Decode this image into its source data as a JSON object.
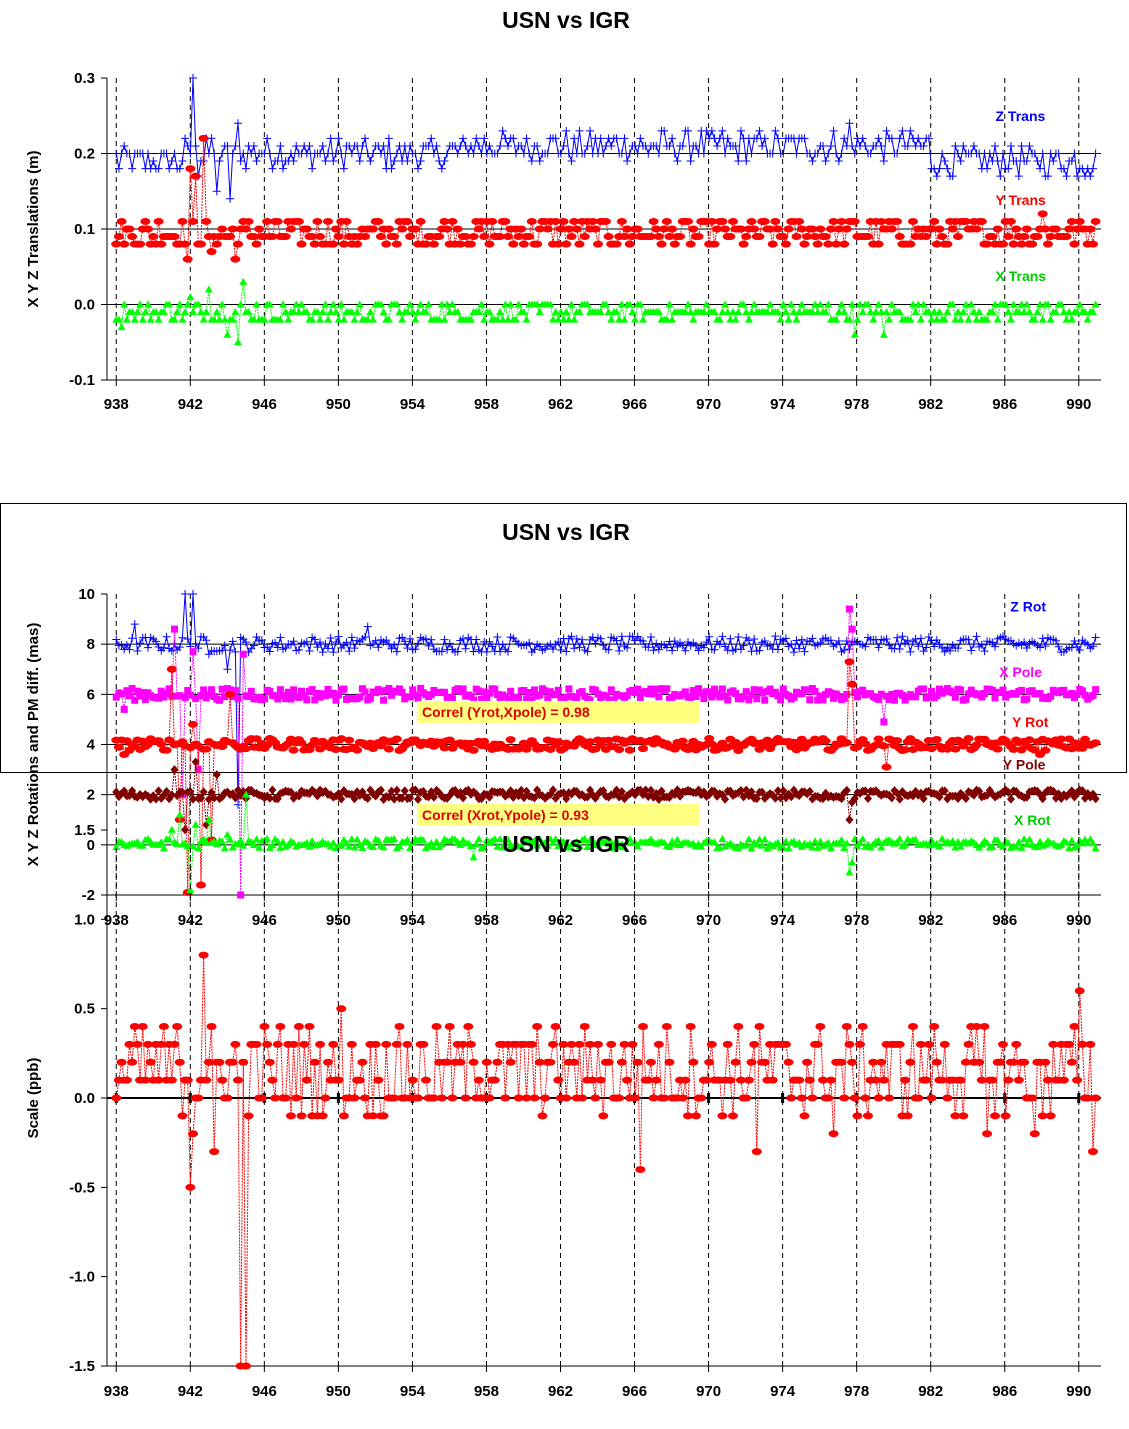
{
  "chart_data": [
    {
      "type": "scatter",
      "title": "USN vs IGR",
      "ylabel": "X Y Z Translations (m)",
      "xlabel": "",
      "xlim": [
        937.5,
        991.2
      ],
      "ylim": [
        -0.1,
        0.3
      ],
      "x_ticks": [
        "938",
        "942",
        "946",
        "950",
        "954",
        "958",
        "962",
        "966",
        "970",
        "974",
        "978",
        "982",
        "986",
        "990"
      ],
      "y_ticks": [
        "-0.1",
        "0.0",
        "0.1",
        "0.2",
        "0.3"
      ],
      "grid": "vertical dashed at ticks; horizontal at 0.0, 0.1, 0.2",
      "series": [
        {
          "name": "Z Trans",
          "color": "#0000ff",
          "marker": "plus",
          "base": 0.2,
          "noise": 0.012,
          "segments": [
            [
              938,
              939.5,
              0.19
            ],
            [
              939.5,
              941.5,
              0.19
            ],
            [
              945.5,
              957,
              0.2
            ],
            [
              957,
              971,
              0.21
            ],
            [
              971,
              982,
              0.21
            ],
            [
              982,
              991,
              0.19
            ]
          ],
          "spikes": [
            [
              942.1,
              0.3
            ],
            [
              942.5,
              0.17
            ],
            [
              942.8,
              0.22
            ],
            [
              943.5,
              0.15
            ],
            [
              944.2,
              0.14
            ],
            [
              944.6,
              0.24
            ],
            [
              977.6,
              0.24
            ]
          ]
        },
        {
          "name": "Y Trans",
          "color": "#ff0000",
          "marker": "circle",
          "base": 0.095,
          "noise": 0.012,
          "segments": [
            [
              938,
              991,
              0.095
            ]
          ],
          "spikes": [
            [
              941.8,
              0.06
            ],
            [
              942.0,
              0.18
            ],
            [
              942.3,
              0.17
            ],
            [
              942.7,
              0.22
            ],
            [
              943.2,
              0.07
            ],
            [
              944.4,
              0.06
            ],
            [
              988.1,
              0.12
            ]
          ]
        },
        {
          "name": "X Trans",
          "color": "#00ff00",
          "marker": "triangle",
          "base": -0.01,
          "noise": 0.008,
          "segments": [
            [
              938,
              991,
              -0.01
            ]
          ],
          "spikes": [
            [
              938.3,
              -0.03
            ],
            [
              942.0,
              0.01
            ],
            [
              943.0,
              0.02
            ],
            [
              944.0,
              -0.04
            ],
            [
              944.6,
              -0.05
            ],
            [
              944.9,
              0.03
            ],
            [
              977.9,
              -0.04
            ],
            [
              979.4,
              -0.04
            ]
          ]
        }
      ],
      "labels": [
        {
          "text": "Z Trans",
          "color": "#0000ff",
          "x": 985.5,
          "y": 0.243
        },
        {
          "text": "Y Trans",
          "color": "#ff0000",
          "x": 985.5,
          "y": 0.132
        },
        {
          "text": "X Trans",
          "color": "#00cc00",
          "x": 985.5,
          "y": 0.031
        }
      ]
    },
    {
      "type": "scatter",
      "title": "USN vs IGR",
      "ylabel": "X Y Z Rotations and PM diff. (mas)",
      "xlabel": "",
      "xlim": [
        937.5,
        991.2
      ],
      "ylim": [
        -2,
        10
      ],
      "x_ticks": [
        "938",
        "942",
        "946",
        "950",
        "954",
        "958",
        "962",
        "966",
        "970",
        "974",
        "978",
        "982",
        "986",
        "990"
      ],
      "y_ticks": [
        "-2",
        "0",
        "2",
        "4",
        "6",
        "8",
        "10"
      ],
      "grid": "vertical dashed at ticks; horizontal at 0, 2, 4, 6, 8",
      "series": [
        {
          "name": "Z Rot",
          "color": "#0000ff",
          "marker": "plus",
          "base": 8.0,
          "noise": 0.2,
          "segments": [
            [
              938,
              991,
              8.0
            ]
          ],
          "spikes": [
            [
              939.0,
              8.8
            ],
            [
              941.7,
              10.0
            ],
            [
              942.1,
              10.0
            ],
            [
              943.0,
              7.6
            ],
            [
              944.0,
              7.0
            ],
            [
              944.6,
              1.6
            ],
            [
              951.6,
              8.7
            ],
            [
              977.6,
              7.8
            ]
          ]
        },
        {
          "name": "X Pole",
          "color": "#ff00ff",
          "marker": "square",
          "base": 6.0,
          "noise": 0.15,
          "segments": [
            [
              938,
              991,
              6.0
            ]
          ],
          "spikes": [
            [
              938.4,
              5.4
            ],
            [
              941.1,
              8.6
            ],
            [
              941.6,
              2.0
            ],
            [
              942.1,
              7.7
            ],
            [
              942.5,
              3.0
            ],
            [
              944.7,
              -2.0
            ],
            [
              944.9,
              7.6
            ],
            [
              977.6,
              9.4
            ],
            [
              977.8,
              8.6
            ],
            [
              979.5,
              4.9
            ]
          ]
        },
        {
          "name": "Y Rot",
          "color": "#ff0000",
          "marker": "circle",
          "base": 4.0,
          "noise": 0.15,
          "segments": [
            [
              938,
              991,
              4.0
            ]
          ],
          "spikes": [
            [
              938.4,
              3.6
            ],
            [
              941.0,
              7.0
            ],
            [
              941.4,
              1.0
            ],
            [
              941.8,
              -1.9
            ],
            [
              942.1,
              4.8
            ],
            [
              942.6,
              -1.6
            ],
            [
              943.1,
              0.2
            ],
            [
              944.2,
              6.0
            ],
            [
              977.6,
              7.3
            ],
            [
              977.8,
              6.4
            ],
            [
              979.6,
              3.1
            ],
            [
              987.9,
              3.6
            ]
          ]
        },
        {
          "name": "Y Pole",
          "color": "#800000",
          "marker": "diamond",
          "base": 2.0,
          "noise": 0.12,
          "segments": [
            [
              938,
              991,
              2.0
            ]
          ],
          "spikes": [
            [
              941.2,
              3.0
            ],
            [
              941.7,
              0.6
            ],
            [
              942.3,
              3.3
            ],
            [
              942.8,
              0.8
            ],
            [
              943.5,
              2.8
            ],
            [
              944.2,
              2.0
            ],
            [
              977.6,
              1.0
            ],
            [
              977.8,
              1.7
            ]
          ]
        },
        {
          "name": "X Rot",
          "color": "#00ff00",
          "marker": "triangle",
          "base": 0.05,
          "noise": 0.12,
          "segments": [
            [
              938,
              991,
              0.05
            ]
          ],
          "spikes": [
            [
              941.0,
              0.6
            ],
            [
              941.5,
              1.2
            ],
            [
              942.0,
              -1.8
            ],
            [
              942.3,
              0.8
            ],
            [
              943.0,
              1.0
            ],
            [
              944.0,
              0.4
            ],
            [
              945.0,
              2.0
            ],
            [
              977.6,
              -1.1
            ],
            [
              977.8,
              -0.7
            ],
            [
              957.3,
              -0.5
            ]
          ]
        }
      ],
      "labels": [
        {
          "text": "Z Rot",
          "color": "#0000ff",
          "x": 986.3,
          "y": 9.3
        },
        {
          "text": "X Pole",
          "color": "#ff00ff",
          "x": 985.7,
          "y": 6.7
        },
        {
          "text": "Y Rot",
          "color": "#ff0000",
          "x": 986.4,
          "y": 4.7
        },
        {
          "text": "Y Pole",
          "color": "#800000",
          "x": 985.9,
          "y": 3.0
        },
        {
          "text": "X Rot",
          "color": "#00cc00",
          "x": 986.5,
          "y": 0.8
        }
      ],
      "annotations": [
        {
          "text": "Correl (Yrot,Xpole) = 0.98",
          "x": 954.3,
          "y": 5.1
        },
        {
          "text": "Correl (Xrot,Ypole) = 0.93",
          "x": 954.3,
          "y": 1.0
        }
      ]
    },
    {
      "type": "scatter",
      "title": "USN vs IGR",
      "ylabel": "Scale (ppb)",
      "xlabel": "",
      "xlim": [
        937.5,
        991.2
      ],
      "ylim": [
        -1.5,
        1.5
      ],
      "x_ticks": [
        "938",
        "942",
        "946",
        "950",
        "954",
        "958",
        "962",
        "966",
        "970",
        "974",
        "978",
        "982",
        "986",
        "990"
      ],
      "y_ticks": [
        "-1.5",
        "-1.0",
        "-0.5",
        "0.0",
        "0.5",
        "1.0",
        "1.5"
      ],
      "grid": "vertical dashed at ticks; horizontal at 0.0",
      "series": [
        {
          "name": "Scale",
          "color": "#ff0000",
          "marker": "circle",
          "base": 0.15,
          "noise": 0.15,
          "segments": [
            [
              938,
              991,
              0.15
            ]
          ],
          "spikes": [
            [
              938.0,
              0.0
            ],
            [
              942.0,
              -0.5
            ],
            [
              942.2,
              -0.2
            ],
            [
              942.7,
              0.8
            ],
            [
              943.3,
              -0.3
            ],
            [
              944.7,
              -1.5
            ],
            [
              945.0,
              -1.5
            ],
            [
              950.2,
              0.5
            ],
            [
              966.3,
              -0.4
            ],
            [
              972.6,
              -0.3
            ],
            [
              976.8,
              -0.2
            ],
            [
              985.1,
              -0.2
            ],
            [
              987.6,
              -0.2
            ],
            [
              990.1,
              0.6
            ],
            [
              990.7,
              -0.3
            ]
          ]
        }
      ],
      "labels": []
    }
  ]
}
